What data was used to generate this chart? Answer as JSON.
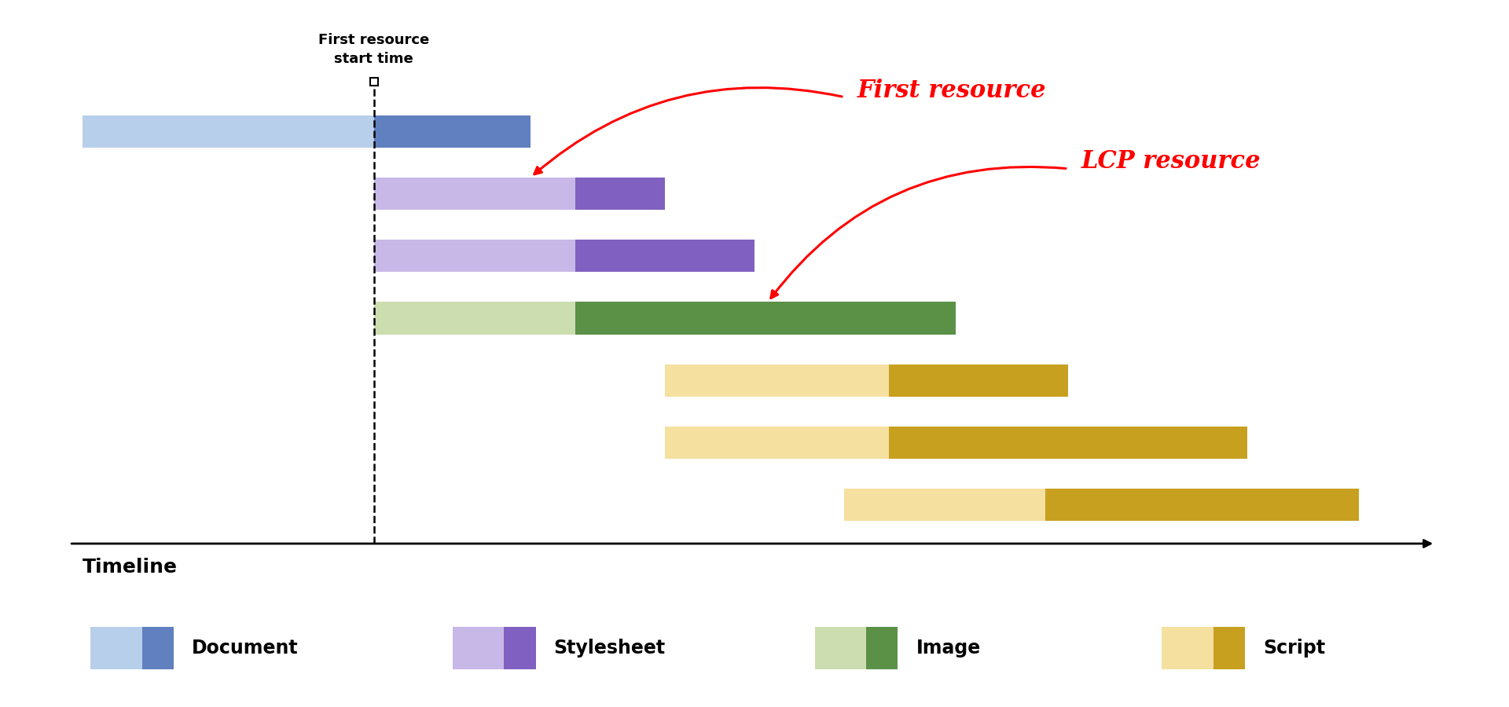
{
  "background_color": "#ffffff",
  "legend_background": "#f2f2f2",
  "bars": [
    {
      "label": "Document",
      "row": 6,
      "light_start": 0.5,
      "light_end": 7.0,
      "dark_start": 7.0,
      "dark_end": 10.5,
      "light_color": "#b8cfeb",
      "dark_color": "#6080bf"
    },
    {
      "label": "Stylesheet",
      "row": 5,
      "light_start": 7.0,
      "light_end": 11.5,
      "dark_start": 11.5,
      "dark_end": 13.5,
      "light_color": "#c8b8e8",
      "dark_color": "#8060c0"
    },
    {
      "label": "Stylesheet",
      "row": 4,
      "light_start": 7.0,
      "light_end": 11.5,
      "dark_start": 11.5,
      "dark_end": 15.5,
      "light_color": "#c8b8e8",
      "dark_color": "#8060c0"
    },
    {
      "label": "Image",
      "row": 3,
      "light_start": 7.0,
      "light_end": 11.5,
      "dark_start": 11.5,
      "dark_end": 20.0,
      "light_color": "#ccddb0",
      "dark_color": "#5a9147"
    },
    {
      "label": "Script",
      "row": 2,
      "light_start": 13.5,
      "light_end": 18.5,
      "dark_start": 18.5,
      "dark_end": 22.5,
      "light_color": "#f5e0a0",
      "dark_color": "#c8a020"
    },
    {
      "label": "Script",
      "row": 1,
      "light_start": 13.5,
      "light_end": 18.5,
      "dark_start": 18.5,
      "dark_end": 26.5,
      "light_color": "#f5e0a0",
      "dark_color": "#c8a020"
    },
    {
      "label": "Script",
      "row": 0,
      "light_start": 17.5,
      "light_end": 22.0,
      "dark_start": 22.0,
      "dark_end": 29.0,
      "light_color": "#f5e0a0",
      "dark_color": "#c8a020"
    }
  ],
  "dashed_x": 7.0,
  "xlim": [
    0,
    31
  ],
  "ylim": [
    -1.2,
    7.2
  ],
  "bar_height": 0.52,
  "timeline_label": "Timeline",
  "annotation_first_resource": "First resource",
  "annotation_lcp_resource": "LCP resource",
  "first_resource_start_label": "First resource\nstart time",
  "legend_items": [
    {
      "label": "Document",
      "light_color": "#b8cfeb",
      "dark_color": "#6080bf"
    },
    {
      "label": "Stylesheet",
      "light_color": "#c8b8e8",
      "dark_color": "#8060c0"
    },
    {
      "label": "Image",
      "light_color": "#ccddb0",
      "dark_color": "#5a9147"
    },
    {
      "label": "Script",
      "light_color": "#f5e0a0",
      "dark_color": "#c8a020"
    }
  ]
}
